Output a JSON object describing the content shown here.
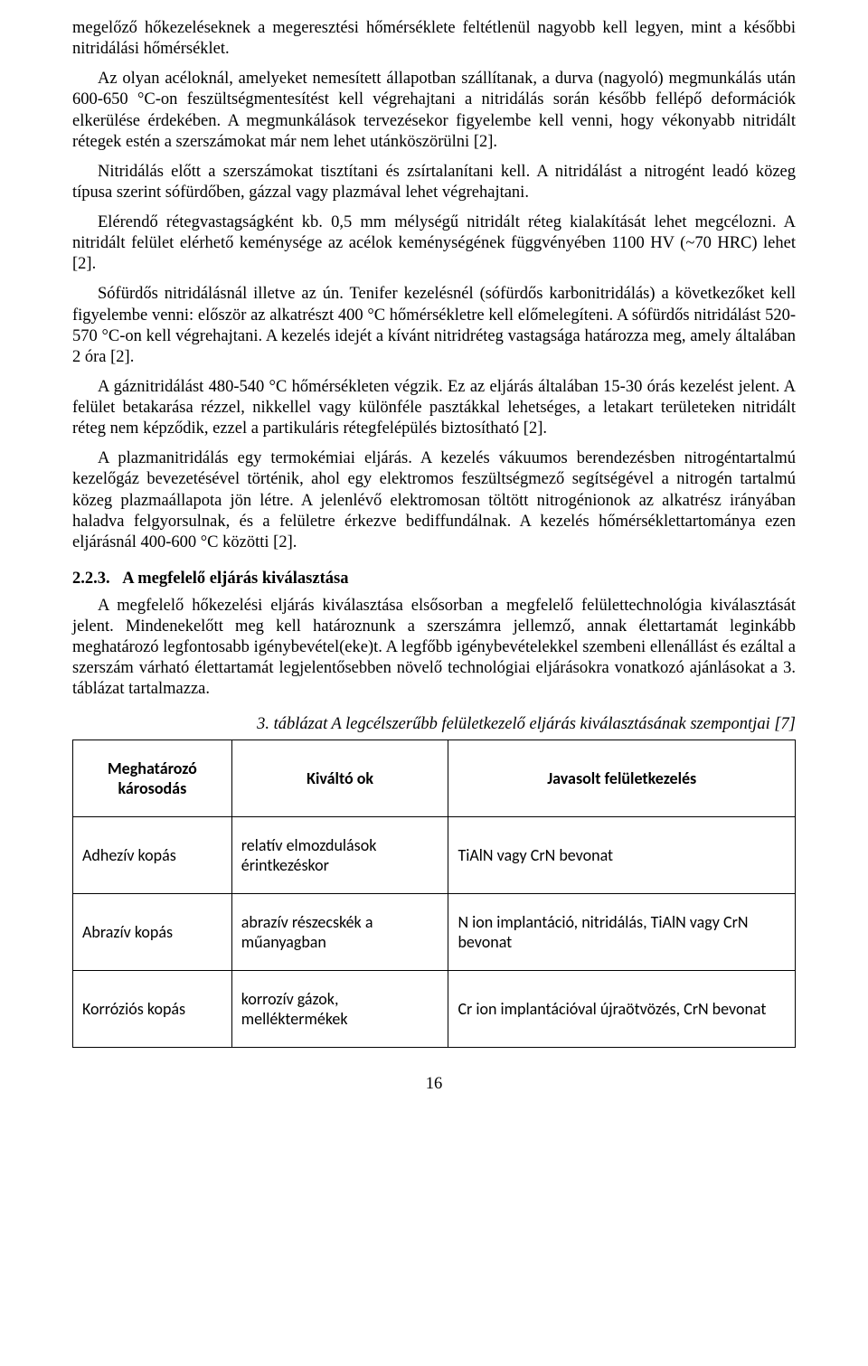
{
  "paragraphs": {
    "p1": "megelőző hőkezeléseknek a megeresztési hőmérséklete feltétlenül nagyobb kell legyen, mint a későbbi nitridálási hőmérséklet.",
    "p2": "Az olyan acéloknál, amelyeket nemesített állapotban szállítanak, a durva (nagyoló) megmunkálás után 600-650 °C-on feszültségmentesítést kell végrehajtani a nitridálás során később fellépő deformációk elkerülése érdekében. A megmunkálások tervezésekor figyelembe kell venni, hogy vékonyabb nitridált rétegek estén a szerszámokat már nem lehet utánköszörülni [2].",
    "p3": "Nitridálás előtt a szerszámokat tisztítani és zsírtalanítani kell. A nitridálást a nitrogént leadó közeg típusa szerint sófürdőben, gázzal vagy plazmával lehet végrehajtani.",
    "p4": "Elérendő rétegvastagságként kb. 0,5 mm mélységű nitridált réteg kialakítását lehet megcélozni. A nitridált felület elérhető keménysége az acélok keménységének függvényében 1100 HV (~70 HRC) lehet [2].",
    "p5": "Sófürdős nitridálásnál illetve az ún. Tenifer kezelésnél (sófürdős karbonitridálás) a következőket kell figyelembe venni: először az alkatrészt 400 °C hőmérsékletre kell előmelegíteni. A sófürdős nitridálást 520-570 °C-on kell végrehajtani. A kezelés idejét a kívánt nitridréteg vastagsága határozza meg, amely általában 2 óra [2].",
    "p6": "A gáznitridálást 480-540 °C hőmérsékleten végzik. Ez az eljárás általában 15-30 órás kezelést jelent. A felület betakarása rézzel, nikkellel vagy különféle pasztákkal lehetséges, a letakart területeken nitridált réteg nem képződik, ezzel a partikuláris rétegfelépülés biztosítható [2].",
    "p7": "A plazmanitridálás egy termokémiai eljárás. A kezelés vákuumos berendezésben nitrogéntartalmú kezelőgáz bevezetésével történik, ahol egy elektromos feszültségmező segítségével a nitrogén tartalmú közeg plazmaállapota jön létre. A jelenlévő elektromosan töltött nitrogénionok az alkatrész irányában haladva felgyorsulnak, és a felületre érkezve bediffundálnak. A kezelés hőmérséklettartománya ezen eljárásnál 400-600 °C közötti [2]."
  },
  "section": {
    "number": "2.2.3.",
    "title": "A megfelelő eljárás kiválasztása",
    "p1": "A megfelelő hőkezelési eljárás kiválasztása elsősorban a megfelelő felülettechnológia kiválasztását jelent. Mindenekelőtt meg kell határoznunk a szerszámra jellemző, annak élettartamát leginkább meghatározó legfontosabb igénybevétel(eke)t. A legfőbb igénybevételekkel szembeni ellenállást és ezáltal a szerszám várható élettartamát legjelentősebben növelő technológiai eljárásokra vonatkozó ajánlásokat a 3. táblázat tartalmazza."
  },
  "table": {
    "caption": "3. táblázat A legcélszerűbb felületkezelő eljárás kiválasztásának szempontjai [7]",
    "headers": {
      "c1": "Meghatározó károsodás",
      "c2": "Kiváltó ok",
      "c3": "Javasolt felületkezelés"
    },
    "rows": [
      {
        "c1": "Adhezív kopás",
        "c2": "relatív elmozdulások érintkezéskor",
        "c3": "TiAlN vagy CrN bevonat"
      },
      {
        "c1": "Abrazív kopás",
        "c2": "abrazív részecskék a műanyagban",
        "c3": "N ion implantáció, nitridálás, TiAlN vagy CrN bevonat"
      },
      {
        "c1": "Korróziós kopás",
        "c2": "korrozív gázok, melléktermékek",
        "c3": "Cr ion implantációval újraötvözés, CrN bevonat"
      }
    ]
  },
  "pageNumber": "16"
}
